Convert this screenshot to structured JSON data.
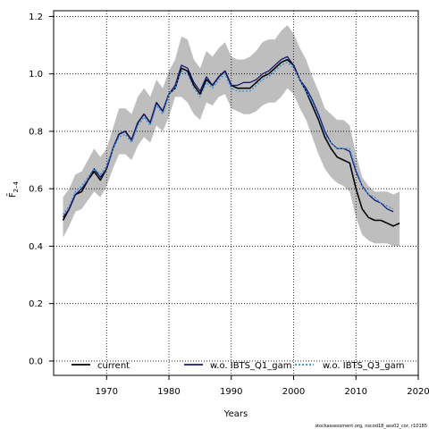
{
  "chart_data": {
    "type": "line",
    "xlabel": "Years",
    "ylabel": "F̄ 2–4",
    "xlim": [
      1961.5,
      2020
    ],
    "ylim": [
      -0.05,
      1.22
    ],
    "x_ticks": [
      1970,
      1980,
      1990,
      2000,
      2010,
      2020
    ],
    "y_ticks": [
      0.0,
      0.2,
      0.4,
      0.6,
      0.8,
      1.0,
      1.2
    ],
    "grid": true,
    "legend_position": "bottom",
    "footnote": "stockassessment.org, nscod18_ass02_cor, r10185",
    "band": {
      "color": "#bebebe",
      "x": [
        1963,
        1964,
        1965,
        1966,
        1967,
        1968,
        1969,
        1970,
        1971,
        1972,
        1973,
        1974,
        1975,
        1976,
        1977,
        1978,
        1979,
        1980,
        1981,
        1982,
        1983,
        1984,
        1985,
        1986,
        1987,
        1988,
        1989,
        1990,
        1991,
        1992,
        1993,
        1994,
        1995,
        1996,
        1997,
        1998,
        1999,
        2000,
        2001,
        2002,
        2003,
        2004,
        2005,
        2006,
        2007,
        2008,
        2009,
        2010,
        2011,
        2012,
        2013,
        2014,
        2015,
        2016,
        2017
      ],
      "lower": [
        0.43,
        0.47,
        0.52,
        0.53,
        0.56,
        0.59,
        0.57,
        0.61,
        0.67,
        0.72,
        0.72,
        0.7,
        0.75,
        0.78,
        0.76,
        0.82,
        0.8,
        0.85,
        0.92,
        0.92,
        0.9,
        0.86,
        0.84,
        0.9,
        0.89,
        0.92,
        0.93,
        0.88,
        0.87,
        0.86,
        0.86,
        0.87,
        0.89,
        0.9,
        0.9,
        0.92,
        0.95,
        0.93,
        0.88,
        0.84,
        0.78,
        0.72,
        0.67,
        0.64,
        0.62,
        0.61,
        0.59,
        0.5,
        0.44,
        0.42,
        0.41,
        0.41,
        0.41,
        0.4,
        0.4
      ],
      "upper": [
        0.57,
        0.6,
        0.65,
        0.66,
        0.7,
        0.74,
        0.71,
        0.74,
        0.81,
        0.88,
        0.88,
        0.86,
        0.92,
        0.95,
        0.92,
        0.98,
        0.95,
        1.01,
        1.05,
        1.13,
        1.12,
        1.05,
        1.02,
        1.08,
        1.06,
        1.09,
        1.11,
        1.06,
        1.05,
        1.05,
        1.06,
        1.08,
        1.11,
        1.12,
        1.12,
        1.15,
        1.17,
        1.14,
        1.09,
        1.05,
        0.99,
        0.94,
        0.88,
        0.86,
        0.84,
        0.84,
        0.82,
        0.72,
        0.64,
        0.61,
        0.59,
        0.59,
        0.59,
        0.58,
        0.59
      ]
    },
    "series": [
      {
        "name": "current",
        "color": "#000000",
        "dash": "solid",
        "x": [
          1963,
          1964,
          1965,
          1966,
          1967,
          1968,
          1969,
          1970,
          1971,
          1972,
          1973,
          1974,
          1975,
          1976,
          1977,
          1978,
          1979,
          1980,
          1981,
          1982,
          1983,
          1984,
          1985,
          1986,
          1987,
          1988,
          1989,
          1990,
          1991,
          1992,
          1993,
          1994,
          1995,
          1996,
          1997,
          1998,
          1999,
          2000,
          2001,
          2002,
          2003,
          2004,
          2005,
          2006,
          2007,
          2008,
          2009,
          2010,
          2011,
          2012,
          2013,
          2014,
          2015,
          2016,
          2017
        ],
        "values": [
          0.49,
          0.53,
          0.58,
          0.59,
          0.63,
          0.66,
          0.63,
          0.67,
          0.74,
          0.79,
          0.8,
          0.77,
          0.83,
          0.86,
          0.83,
          0.9,
          0.87,
          0.93,
          0.95,
          1.02,
          1.01,
          0.96,
          0.93,
          0.98,
          0.96,
          0.99,
          1.01,
          0.96,
          0.95,
          0.95,
          0.95,
          0.97,
          0.99,
          1.0,
          1.02,
          1.04,
          1.05,
          1.03,
          0.98,
          0.94,
          0.89,
          0.84,
          0.78,
          0.74,
          0.71,
          0.7,
          0.69,
          0.6,
          0.53,
          0.5,
          0.49,
          0.49,
          0.48,
          0.47,
          0.48
        ]
      },
      {
        "name": "w.o. IBTS_Q1_gam",
        "color": "#1a1a6e",
        "dash": "solid",
        "x": [
          1963,
          1964,
          1965,
          1966,
          1967,
          1968,
          1969,
          1970,
          1971,
          1972,
          1973,
          1974,
          1975,
          1976,
          1977,
          1978,
          1979,
          1980,
          1981,
          1982,
          1983,
          1984,
          1985,
          1986,
          1987,
          1988,
          1989,
          1990,
          1991,
          1992,
          1993,
          1994,
          1995,
          1996,
          1997,
          1998,
          1999,
          2000,
          2001,
          2002,
          2003,
          2004,
          2005,
          2006,
          2007,
          2008,
          2009,
          2010,
          2011,
          2012,
          2013,
          2014,
          2015,
          2016
        ],
        "values": [
          0.5,
          0.53,
          0.58,
          0.6,
          0.63,
          0.67,
          0.64,
          0.67,
          0.74,
          0.79,
          0.8,
          0.77,
          0.83,
          0.86,
          0.83,
          0.9,
          0.87,
          0.93,
          0.96,
          1.03,
          1.02,
          0.97,
          0.94,
          0.99,
          0.96,
          0.99,
          1.01,
          0.96,
          0.96,
          0.97,
          0.97,
          0.98,
          1.0,
          1.01,
          1.03,
          1.05,
          1.06,
          1.03,
          0.98,
          0.95,
          0.91,
          0.86,
          0.8,
          0.76,
          0.74,
          0.74,
          0.73,
          0.66,
          0.61,
          0.58,
          0.56,
          0.55,
          0.53,
          0.52
        ]
      },
      {
        "name": "w.o. IBTS_Q3_gam",
        "color": "#2e8fe0",
        "dash": "dotted",
        "x": [
          1963,
          1964,
          1965,
          1966,
          1967,
          1968,
          1969,
          1970,
          1971,
          1972,
          1973,
          1974,
          1975,
          1976,
          1977,
          1978,
          1979,
          1980,
          1981,
          1982,
          1983,
          1984,
          1985,
          1986,
          1987,
          1988,
          1989,
          1990,
          1991,
          1992,
          1993,
          1994,
          1995,
          1996,
          1997,
          1998,
          1999,
          2000,
          2001,
          2002,
          2003,
          2004,
          2005,
          2006,
          2007,
          2008,
          2009,
          2010,
          2011,
          2012,
          2013,
          2014,
          2015,
          2016
        ],
        "values": [
          0.51,
          0.54,
          0.59,
          0.61,
          0.64,
          0.67,
          0.65,
          0.68,
          0.74,
          0.78,
          0.79,
          0.76,
          0.82,
          0.85,
          0.82,
          0.89,
          0.86,
          0.93,
          0.95,
          1.01,
          1.0,
          0.95,
          0.92,
          0.97,
          0.95,
          0.98,
          1.0,
          0.95,
          0.94,
          0.94,
          0.94,
          0.96,
          0.98,
          0.99,
          1.01,
          1.03,
          1.04,
          1.02,
          0.98,
          0.94,
          0.9,
          0.85,
          0.79,
          0.76,
          0.74,
          0.74,
          0.74,
          0.67,
          0.61,
          0.58,
          0.57,
          0.55,
          0.54,
          0.53
        ]
      }
    ]
  }
}
